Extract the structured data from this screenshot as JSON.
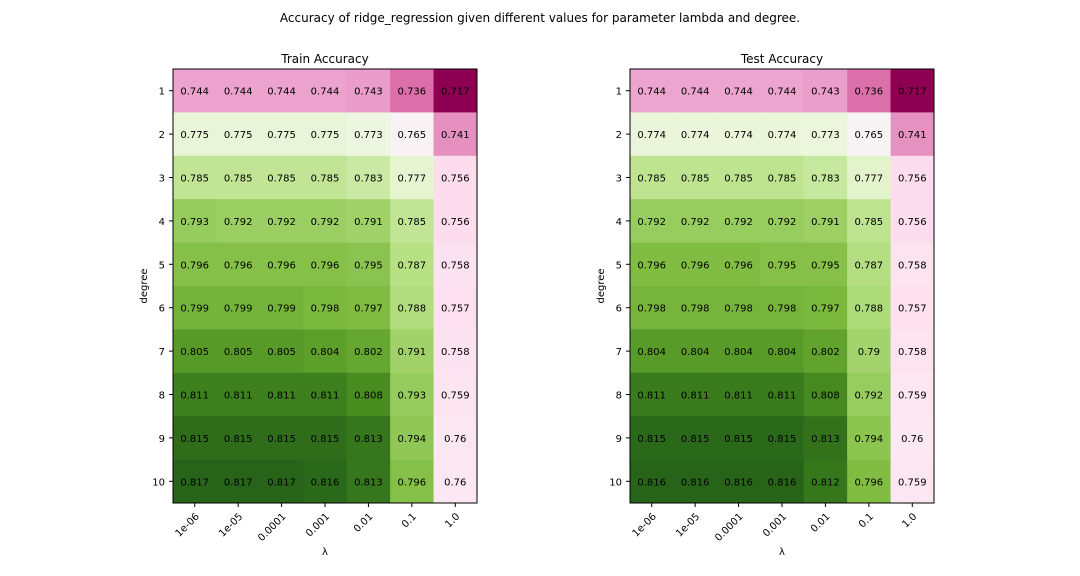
{
  "figure": {
    "suptitle": "Accuracy of ridge_regression given different values for parameter lambda and degree."
  },
  "colors": {
    "cmap": "PiYG",
    "cell_text": "#000000",
    "frame": "#000000"
  },
  "chart_data": [
    {
      "type": "heatmap",
      "title": "Train Accuracy",
      "xlabel": "λ",
      "ylabel": "degree",
      "x_categories": [
        "1e-06",
        "1e-05",
        "0.0001",
        "0.001",
        "0.01",
        "0.1",
        "1.0"
      ],
      "y_categories": [
        "1",
        "2",
        "3",
        "4",
        "5",
        "6",
        "7",
        "8",
        "9",
        "10"
      ],
      "color_range": [
        0.717,
        0.817
      ],
      "values": [
        [
          "0.744",
          "0.744",
          "0.744",
          "0.744",
          "0.743",
          "0.736",
          "0.717"
        ],
        [
          "0.775",
          "0.775",
          "0.775",
          "0.775",
          "0.773",
          "0.765",
          "0.741"
        ],
        [
          "0.785",
          "0.785",
          "0.785",
          "0.785",
          "0.783",
          "0.777",
          "0.756"
        ],
        [
          "0.793",
          "0.792",
          "0.792",
          "0.792",
          "0.791",
          "0.785",
          "0.756"
        ],
        [
          "0.796",
          "0.796",
          "0.796",
          "0.796",
          "0.795",
          "0.787",
          "0.758"
        ],
        [
          "0.799",
          "0.799",
          "0.799",
          "0.798",
          "0.797",
          "0.788",
          "0.757"
        ],
        [
          "0.805",
          "0.805",
          "0.805",
          "0.804",
          "0.802",
          "0.791",
          "0.758"
        ],
        [
          "0.811",
          "0.811",
          "0.811",
          "0.811",
          "0.808",
          "0.793",
          "0.759"
        ],
        [
          "0.815",
          "0.815",
          "0.815",
          "0.815",
          "0.813",
          "0.794",
          "0.76"
        ],
        [
          "0.817",
          "0.817",
          "0.817",
          "0.816",
          "0.813",
          "0.796",
          "0.76"
        ]
      ]
    },
    {
      "type": "heatmap",
      "title": "Test Accuracy",
      "xlabel": "λ",
      "ylabel": "degree",
      "x_categories": [
        "1e-06",
        "1e-05",
        "0.0001",
        "0.001",
        "0.01",
        "0.1",
        "1.0"
      ],
      "y_categories": [
        "1",
        "2",
        "3",
        "4",
        "5",
        "6",
        "7",
        "8",
        "9",
        "10"
      ],
      "color_range": [
        0.717,
        0.816
      ],
      "values": [
        [
          "0.744",
          "0.744",
          "0.744",
          "0.744",
          "0.743",
          "0.736",
          "0.717"
        ],
        [
          "0.774",
          "0.774",
          "0.774",
          "0.774",
          "0.773",
          "0.765",
          "0.741"
        ],
        [
          "0.785",
          "0.785",
          "0.785",
          "0.785",
          "0.783",
          "0.777",
          "0.756"
        ],
        [
          "0.792",
          "0.792",
          "0.792",
          "0.792",
          "0.791",
          "0.785",
          "0.756"
        ],
        [
          "0.796",
          "0.796",
          "0.796",
          "0.795",
          "0.795",
          "0.787",
          "0.758"
        ],
        [
          "0.798",
          "0.798",
          "0.798",
          "0.798",
          "0.797",
          "0.788",
          "0.757"
        ],
        [
          "0.804",
          "0.804",
          "0.804",
          "0.804",
          "0.802",
          "0.79",
          "0.758"
        ],
        [
          "0.811",
          "0.811",
          "0.811",
          "0.811",
          "0.808",
          "0.792",
          "0.759"
        ],
        [
          "0.815",
          "0.815",
          "0.815",
          "0.815",
          "0.813",
          "0.794",
          "0.76"
        ],
        [
          "0.816",
          "0.816",
          "0.816",
          "0.816",
          "0.812",
          "0.796",
          "0.759"
        ]
      ]
    }
  ]
}
